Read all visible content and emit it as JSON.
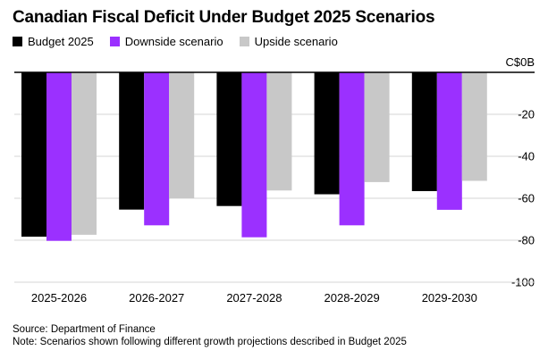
{
  "chart_data": {
    "type": "bar",
    "title": "Canadian Fiscal Deficit Under Budget 2025 Scenarios",
    "categories": [
      "2025-2026",
      "2026-2027",
      "2027-2028",
      "2028-2029",
      "2029-2030"
    ],
    "series": [
      {
        "name": "Budget 2025",
        "color": "#000000",
        "values": [
          -78.3,
          -65.4,
          -63.7,
          -58.1,
          -56.6
        ]
      },
      {
        "name": "Downside scenario",
        "color": "#9b30ff",
        "values": [
          -80.3,
          -72.9,
          -78.6,
          -72.9,
          -65.5
        ]
      },
      {
        "name": "Upside scenario",
        "color": "#c8c8c8",
        "values": [
          -77.4,
          -60.0,
          -56.3,
          -52.3,
          -51.7
        ]
      }
    ],
    "y_ticks": [
      {
        "value": 0,
        "label": "C$0B"
      },
      {
        "value": -20,
        "label": "-20"
      },
      {
        "value": -40,
        "label": "-40"
      },
      {
        "value": -60,
        "label": "-60"
      },
      {
        "value": -80,
        "label": "-80"
      },
      {
        "value": -100,
        "label": "-100"
      }
    ],
    "ylim": [
      -100,
      0
    ],
    "grid": true,
    "legend_position": "top-left"
  },
  "footer": {
    "source": "Source: Department of Finance",
    "note": "Note: Scenarios shown following different growth projections described in Budget 2025"
  }
}
